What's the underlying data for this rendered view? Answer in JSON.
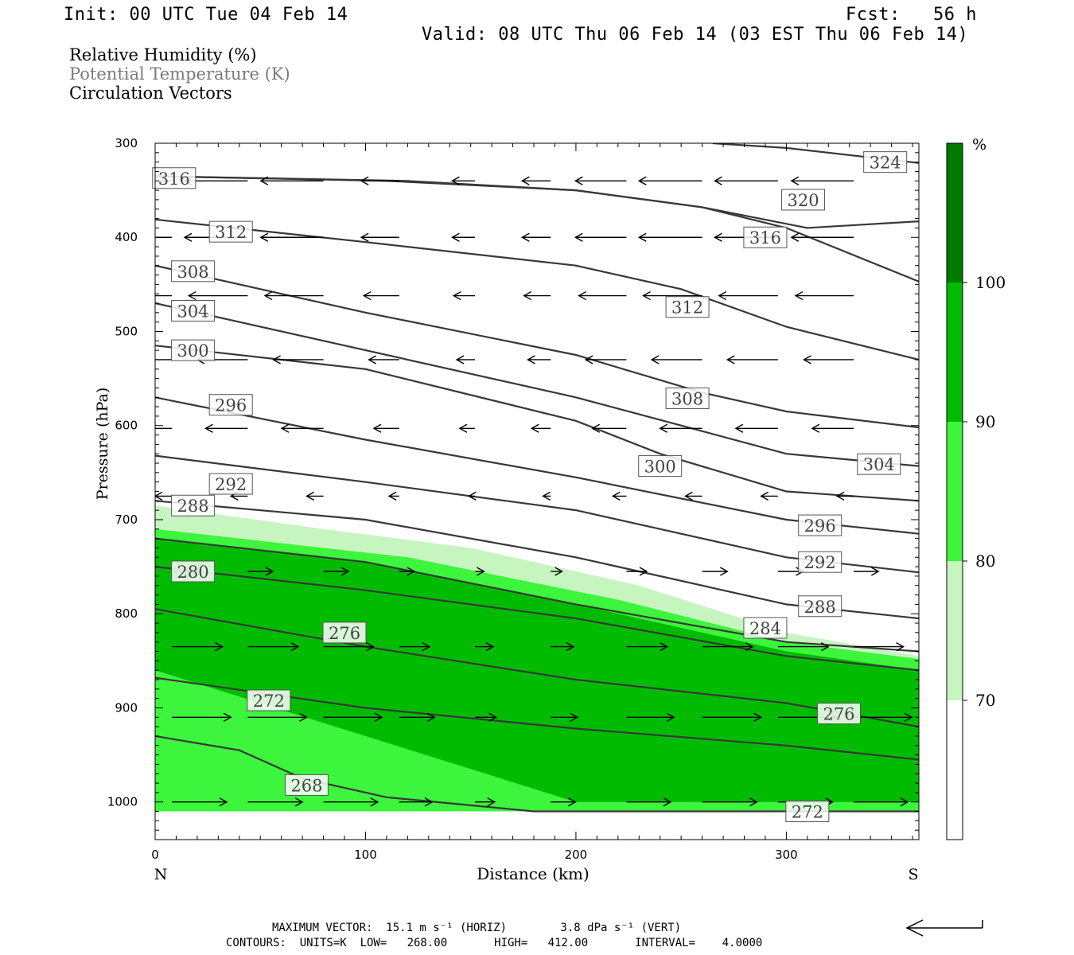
{
  "header": {
    "init": "Init: 00 UTC Tue 04 Feb 14",
    "fcst": "Fcst:   56 h",
    "valid": "Valid: 08 UTC Thu 06 Feb 14 (03 EST Thu 06 Feb 14)"
  },
  "fields": [
    "Relative Humidity (%)",
    "Potential Temperature (K)",
    "Circulation Vectors"
  ],
  "footer": {
    "max_vector": "MAXIMUM VECTOR:  15.1 m s⁻¹ (HORIZ)        3.8 dPa s⁻¹ (VERT)",
    "contours": "CONTOURS:  UNITS=K  LOW=   268.00       HIGH=   412.00       INTERVAL=    4.0000"
  },
  "colors": {
    "rh_70_80": "#c6f5c0",
    "rh_80_90": "#3cf53c",
    "rh_90_100": "#00bb00",
    "rh_100_plus": "#007a00",
    "theta_contour": "#383838",
    "background": "#ffffff"
  },
  "chart_data": {
    "type": "contour",
    "xlabel": "Distance (km)",
    "ylabel": "Pressure (hPa)",
    "xlim": [
      0,
      363
    ],
    "ylim": [
      1040,
      300
    ],
    "x_ticks": [
      0,
      100,
      200,
      300
    ],
    "y_ticks": [
      300,
      400,
      500,
      600,
      700,
      800,
      900,
      1000
    ],
    "x_end_labels": {
      "left": "N",
      "right": "S"
    },
    "colorbar": {
      "unit": "%",
      "levels": [
        70,
        80,
        90,
        100
      ],
      "colors": [
        "#ffffff",
        "#c6f5c0",
        "#3cf53c",
        "#00bb00",
        "#007a00"
      ]
    },
    "theta_contours": [
      {
        "label": "324",
        "points": [
          [
            265,
            300
          ],
          [
            300,
            305
          ],
          [
            363,
            321
          ]
        ],
        "labels_at": [
          [
            347,
            320
          ]
        ]
      },
      {
        "label": "320",
        "points": [
          [
            0,
            335
          ],
          [
            120,
            340
          ],
          [
            200,
            350
          ],
          [
            260,
            368
          ],
          [
            310,
            390
          ],
          [
            363,
            383
          ]
        ],
        "labels_at": [
          [
            308,
            360
          ]
        ]
      },
      {
        "label": "316",
        "points": [
          [
            0,
            335
          ],
          [
            110,
            340
          ],
          [
            200,
            350
          ],
          [
            260,
            368
          ],
          [
            300,
            390
          ],
          [
            363,
            447
          ]
        ],
        "labels_at": [
          [
            9,
            337
          ],
          [
            290,
            400
          ]
        ]
      },
      {
        "label": "312",
        "points": [
          [
            0,
            381
          ],
          [
            100,
            405
          ],
          [
            200,
            430
          ],
          [
            250,
            455
          ],
          [
            300,
            495
          ],
          [
            363,
            530
          ]
        ],
        "labels_at": [
          [
            36,
            394
          ],
          [
            253,
            474
          ]
        ]
      },
      {
        "label": "308",
        "points": [
          [
            0,
            430
          ],
          [
            100,
            480
          ],
          [
            200,
            525
          ],
          [
            260,
            565
          ],
          [
            300,
            585
          ],
          [
            363,
            602
          ]
        ],
        "labels_at": [
          [
            18,
            436
          ],
          [
            253,
            571
          ]
        ]
      },
      {
        "label": "304",
        "points": [
          [
            0,
            470
          ],
          [
            100,
            520
          ],
          [
            200,
            570
          ],
          [
            250,
            600
          ],
          [
            300,
            630
          ],
          [
            363,
            643
          ]
        ],
        "labels_at": [
          [
            18,
            478
          ],
          [
            344,
            641
          ]
        ]
      },
      {
        "label": "300",
        "points": [
          [
            0,
            515
          ],
          [
            100,
            540
          ],
          [
            200,
            595
          ],
          [
            240,
            630
          ],
          [
            300,
            670
          ],
          [
            363,
            680
          ]
        ],
        "labels_at": [
          [
            18,
            520
          ],
          [
            240,
            643
          ]
        ]
      },
      {
        "label": "296",
        "points": [
          [
            0,
            570
          ],
          [
            100,
            615
          ],
          [
            200,
            655
          ],
          [
            300,
            700
          ],
          [
            363,
            715
          ]
        ],
        "labels_at": [
          [
            36,
            578
          ],
          [
            316,
            706
          ]
        ]
      },
      {
        "label": "292",
        "points": [
          [
            0,
            632
          ],
          [
            100,
            660
          ],
          [
            200,
            690
          ],
          [
            300,
            740
          ],
          [
            363,
            756
          ]
        ],
        "labels_at": [
          [
            36,
            662
          ],
          [
            316,
            745
          ]
        ]
      },
      {
        "label": "288",
        "points": [
          [
            0,
            680
          ],
          [
            100,
            700
          ],
          [
            200,
            740
          ],
          [
            300,
            790
          ],
          [
            363,
            805
          ]
        ],
        "labels_at": [
          [
            18,
            685
          ],
          [
            316,
            792
          ]
        ]
      },
      {
        "label": "284",
        "points": [
          [
            0,
            720
          ],
          [
            100,
            745
          ],
          [
            200,
            790
          ],
          [
            300,
            830
          ],
          [
            363,
            840
          ]
        ],
        "labels_at": [
          [
            290,
            815
          ]
        ]
      },
      {
        "label": "280",
        "points": [
          [
            0,
            750
          ],
          [
            100,
            775
          ],
          [
            200,
            805
          ],
          [
            300,
            845
          ],
          [
            363,
            860
          ]
        ],
        "labels_at": [
          [
            18,
            755
          ]
        ]
      },
      {
        "label": "276",
        "points": [
          [
            0,
            795
          ],
          [
            100,
            835
          ],
          [
            200,
            870
          ],
          [
            300,
            895
          ],
          [
            363,
            920
          ]
        ],
        "labels_at": [
          [
            90,
            820
          ],
          [
            325,
            906
          ]
        ]
      },
      {
        "label": "272",
        "points": [
          [
            0,
            868
          ],
          [
            100,
            900
          ],
          [
            200,
            922
          ],
          [
            300,
            940
          ],
          [
            363,
            955
          ]
        ],
        "labels_at": [
          [
            54,
            892
          ],
          [
            310,
            1010
          ]
        ]
      },
      {
        "label": "268",
        "points": [
          [
            0,
            930
          ],
          [
            40,
            945
          ],
          [
            70,
            975
          ],
          [
            110,
            995
          ],
          [
            180,
            1010
          ],
          [
            363,
            1010
          ]
        ],
        "labels_at": [
          [
            72,
            982
          ]
        ]
      }
    ],
    "rh_regions": [
      {
        "level": "70-80",
        "outline": [
          [
            0,
            685
          ],
          [
            80,
            710
          ],
          [
            150,
            730
          ],
          [
            230,
            770
          ],
          [
            300,
            820
          ],
          [
            363,
            845
          ],
          [
            363,
            1010
          ],
          [
            0,
            1010
          ]
        ]
      },
      {
        "level": "80-90",
        "outline": [
          [
            0,
            710
          ],
          [
            120,
            740
          ],
          [
            220,
            785
          ],
          [
            300,
            830
          ],
          [
            363,
            848
          ],
          [
            363,
            1010
          ],
          [
            0,
            1010
          ]
        ]
      },
      {
        "level": "90-100",
        "outline": [
          [
            0,
            720
          ],
          [
            100,
            745
          ],
          [
            200,
            790
          ],
          [
            300,
            840
          ],
          [
            363,
            860
          ],
          [
            363,
            1000
          ],
          [
            200,
            1000
          ],
          [
            0,
            860
          ]
        ]
      }
    ],
    "vectors": [
      {
        "row_pressure": 340,
        "direction": "westward",
        "max_length_km": 30
      },
      {
        "row_pressure": 400,
        "direction": "westward",
        "max_length_km": 30
      },
      {
        "row_pressure": 462,
        "direction": "westward",
        "max_length_km": 28
      },
      {
        "row_pressure": 530,
        "direction": "westward",
        "max_length_km": 24
      },
      {
        "row_pressure": 603,
        "direction": "westward",
        "max_length_km": 20
      },
      {
        "row_pressure": 675,
        "direction": "westward",
        "max_length_km": 8
      },
      {
        "row_pressure": 755,
        "direction": "eastward",
        "max_length_km": 12
      },
      {
        "row_pressure": 835,
        "direction": "eastward",
        "max_length_km": 24
      },
      {
        "row_pressure": 910,
        "direction": "eastward",
        "max_length_km": 28
      },
      {
        "row_pressure": 1000,
        "direction": "eastward",
        "max_length_km": 26
      }
    ]
  }
}
